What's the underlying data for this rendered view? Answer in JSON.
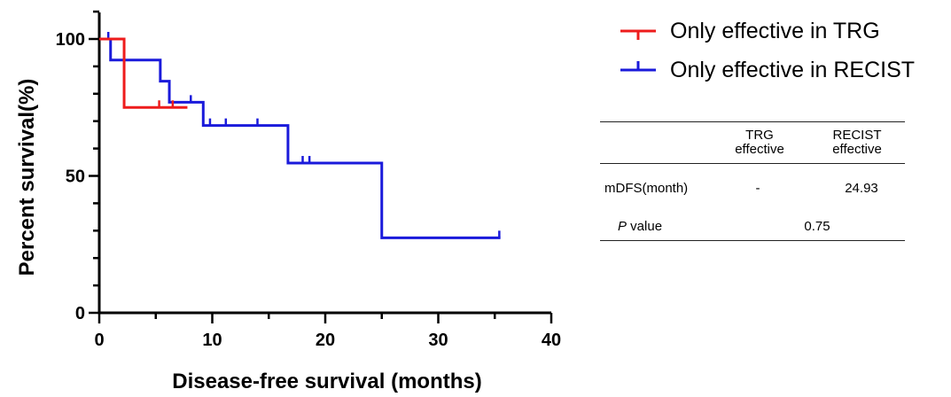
{
  "chart_data": {
    "type": "line",
    "subtype": "kaplan-meier step",
    "xlabel": "Disease-free survival (months)",
    "ylabel": "Percent survival(%)",
    "xlim": [
      0,
      40
    ],
    "ylim": [
      0,
      100
    ],
    "xticks": [
      0,
      10,
      20,
      30,
      40
    ],
    "yticks": [
      0,
      50,
      100
    ],
    "grid": false,
    "legend_position": "top-right",
    "series": [
      {
        "name": "Only effective in TRG",
        "color": "#ee1c1c",
        "steps": [
          [
            0,
            100
          ],
          [
            2.2,
            75
          ],
          [
            7.8,
            75
          ]
        ],
        "censored": [
          [
            5.3,
            75
          ],
          [
            6.5,
            75
          ]
        ]
      },
      {
        "name": "Only effective in RECIST",
        "color": "#1a1adb",
        "steps": [
          [
            0,
            100
          ],
          [
            1.0,
            92.3
          ],
          [
            5.4,
            84.6
          ],
          [
            6.2,
            76.9
          ],
          [
            9.2,
            68.4
          ],
          [
            16.7,
            54.7
          ],
          [
            25.0,
            27.4
          ],
          [
            35.5,
            27.4
          ]
        ],
        "censored": [
          [
            0.8,
            100
          ],
          [
            8.1,
            76.9
          ],
          [
            9.8,
            68.4
          ],
          [
            11.2,
            68.4
          ],
          [
            14.0,
            68.4
          ],
          [
            18.0,
            54.7
          ],
          [
            18.6,
            54.7
          ],
          [
            35.4,
            27.4
          ]
        ]
      }
    ]
  },
  "table": {
    "headers": [
      [
        "TRG",
        "effective"
      ],
      [
        "RECIST",
        "effective"
      ]
    ],
    "rows": [
      {
        "label": "mDFS(month)",
        "values": [
          "-",
          "24.93"
        ]
      },
      {
        "label_italic": "P",
        "label_rest": " value",
        "value": "0.75"
      }
    ]
  }
}
